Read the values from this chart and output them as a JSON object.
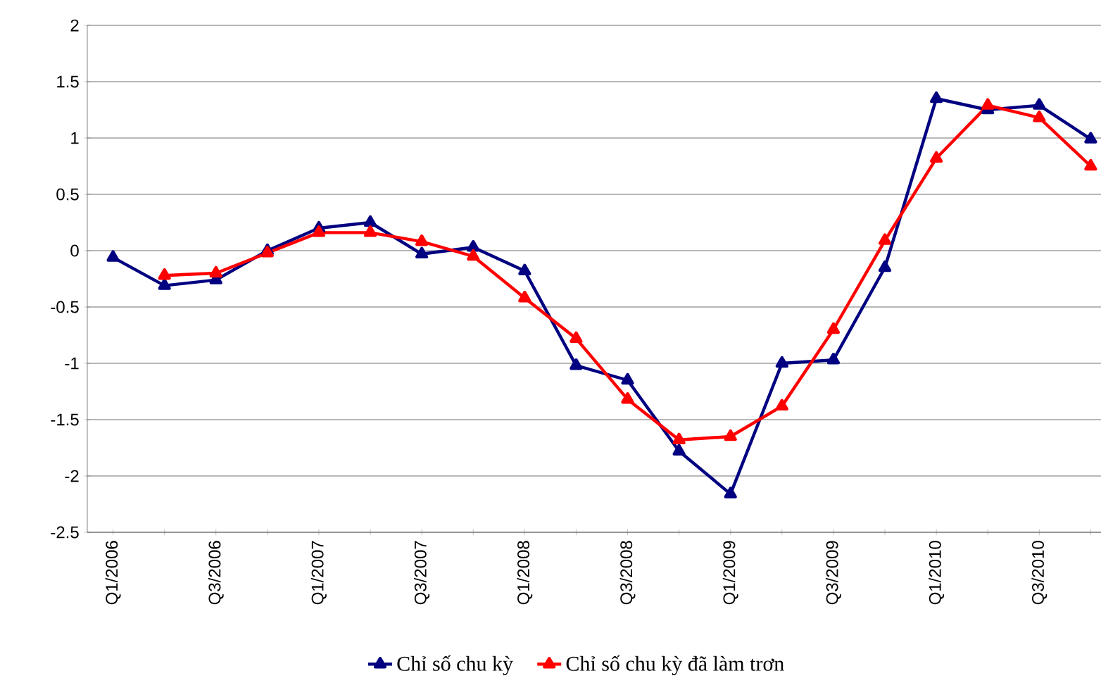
{
  "chart_data": {
    "type": "line",
    "categories": [
      "Q1/2006",
      null,
      "Q3/2006",
      null,
      "Q1/2007",
      null,
      "Q3/2007",
      null,
      "Q1/2008",
      null,
      "Q3/2008",
      null,
      "Q1/2009",
      null,
      "Q3/2009",
      null,
      "Q1/2010",
      null,
      "Q3/2010",
      null
    ],
    "series": [
      {
        "name": "Chỉ số chu kỳ",
        "color": "#000080",
        "values": [
          -0.06,
          -0.31,
          -0.26,
          0.0,
          0.2,
          0.25,
          -0.03,
          0.03,
          -0.18,
          -1.02,
          -1.15,
          -1.78,
          -2.16,
          -1.0,
          -0.97,
          -0.15,
          1.35,
          1.25,
          1.29,
          0.99
        ]
      },
      {
        "name": "Chỉ số chu kỳ đã làm trơn",
        "color": "#ff0000",
        "values": [
          null,
          -0.22,
          -0.2,
          -0.02,
          0.16,
          0.16,
          0.08,
          -0.05,
          -0.42,
          -0.78,
          -1.32,
          -1.68,
          -1.65,
          -1.38,
          -0.7,
          0.09,
          0.82,
          1.29,
          1.18,
          0.75
        ]
      }
    ],
    "ylim": [
      -2.5,
      2
    ],
    "yticks": [
      -2.5,
      -2,
      -1.5,
      -1,
      -0.5,
      0,
      0.5,
      1,
      1.5,
      2
    ],
    "grid": "y",
    "legend": "bottom",
    "marker": "triangle",
    "line_style": "solid"
  }
}
